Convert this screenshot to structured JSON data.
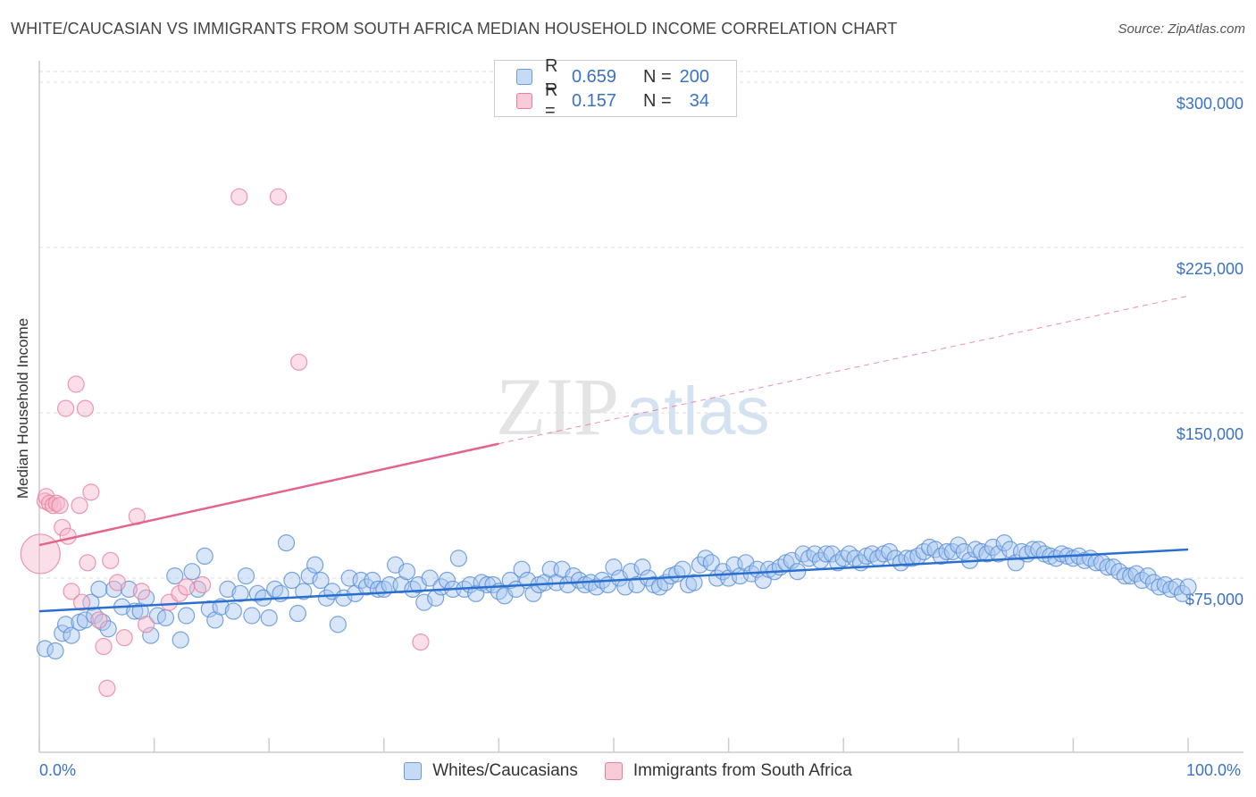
{
  "header": {
    "title": "WHITE/CAUCASIAN VS IMMIGRANTS FROM SOUTH AFRICA MEDIAN HOUSEHOLD INCOME CORRELATION CHART",
    "source": "Source: ZipAtlas.com"
  },
  "watermark": {
    "zip": "ZIP",
    "atlas": "atlas"
  },
  "legend": {
    "rows": [
      {
        "r_label": "R =",
        "r_value": "0.659",
        "n_label": "N =",
        "n_value": "200",
        "color": "#a8c8f0"
      },
      {
        "r_label": "R =",
        "r_value": "0.157",
        "n_label": "N =",
        "n_value": "34",
        "color": "#f5b8cc"
      }
    ]
  },
  "bottom_legend": {
    "white": "Whites/Caucasians",
    "immigrants": "Immigrants from South Africa"
  },
  "colors": {
    "blue_fill": "#a8c8f0",
    "blue_stroke": "#5a8fd6",
    "blue_line": "#2a6fcf",
    "pink_fill": "#f5b8cc",
    "pink_stroke": "#e7809e",
    "pink_line": "#e4638a",
    "axis_text": "#3a72c4"
  },
  "chart_data": {
    "type": "scatter",
    "xlabel": "",
    "ylabel": "Median Household Income",
    "x_tick_labels": [
      "0.0%",
      "100.0%"
    ],
    "y_tick_labels": [
      "$75,000",
      "$150,000",
      "$225,000",
      "$300,000"
    ],
    "y_ticks": [
      75000,
      150000,
      225000,
      300000
    ],
    "xlim": [
      0,
      100
    ],
    "ylim": [
      0,
      310000
    ],
    "grid": true,
    "legend_position": "top-center",
    "series": [
      {
        "name": "Whites/Caucasians",
        "r": 0.659,
        "n": 200,
        "trend": {
          "x": [
            0,
            100
          ],
          "y": [
            62000,
            90000
          ],
          "dashed": false
        },
        "points": [
          [
            0.5,
            45000
          ],
          [
            1.4,
            44000
          ],
          [
            2.0,
            52000
          ],
          [
            2.3,
            56000
          ],
          [
            2.8,
            51000
          ],
          [
            3.5,
            57000
          ],
          [
            4.0,
            58000
          ],
          [
            4.5,
            66000
          ],
          [
            4.8,
            60000
          ],
          [
            5.2,
            72000
          ],
          [
            5.5,
            57000
          ],
          [
            6.0,
            54000
          ],
          [
            6.5,
            72000
          ],
          [
            7.2,
            64000
          ],
          [
            7.8,
            72000
          ],
          [
            8.3,
            62000
          ],
          [
            8.8,
            62000
          ],
          [
            9.3,
            68000
          ],
          [
            9.7,
            51000
          ],
          [
            10.3,
            60000
          ],
          [
            11.0,
            59000
          ],
          [
            11.8,
            78000
          ],
          [
            12.3,
            49000
          ],
          [
            12.8,
            60000
          ],
          [
            13.3,
            80000
          ],
          [
            13.8,
            72000
          ],
          [
            14.4,
            87000
          ],
          [
            14.8,
            63000
          ],
          [
            15.3,
            58000
          ],
          [
            15.8,
            64000
          ],
          [
            16.4,
            72000
          ],
          [
            16.9,
            62000
          ],
          [
            17.5,
            70000
          ],
          [
            18.0,
            78000
          ],
          [
            18.5,
            60000
          ],
          [
            19.0,
            70000
          ],
          [
            19.5,
            68000
          ],
          [
            20.0,
            59000
          ],
          [
            20.5,
            72000
          ],
          [
            21.0,
            70000
          ],
          [
            21.5,
            93000
          ],
          [
            22.0,
            76000
          ],
          [
            22.5,
            61000
          ],
          [
            23.0,
            71000
          ],
          [
            23.5,
            78000
          ],
          [
            24.0,
            83000
          ],
          [
            24.5,
            76000
          ],
          [
            25.0,
            68000
          ],
          [
            25.5,
            71000
          ],
          [
            26.0,
            56000
          ],
          [
            26.5,
            68000
          ],
          [
            27.0,
            77000
          ],
          [
            27.5,
            70000
          ],
          [
            28.0,
            76000
          ],
          [
            28.5,
            73000
          ],
          [
            29.0,
            76000
          ],
          [
            29.5,
            72000
          ],
          [
            30.0,
            72000
          ],
          [
            30.5,
            74000
          ],
          [
            31.0,
            83000
          ],
          [
            31.5,
            74000
          ],
          [
            32.0,
            80000
          ],
          [
            32.5,
            72000
          ],
          [
            33.0,
            74000
          ],
          [
            33.5,
            66000
          ],
          [
            34.0,
            77000
          ],
          [
            34.5,
            68000
          ],
          [
            35.0,
            73000
          ],
          [
            35.5,
            76000
          ],
          [
            36.0,
            72000
          ],
          [
            36.5,
            86000
          ],
          [
            37.0,
            72000
          ],
          [
            37.5,
            74000
          ],
          [
            38.0,
            70000
          ],
          [
            38.5,
            75000
          ],
          [
            39.0,
            74000
          ],
          [
            39.5,
            74000
          ],
          [
            40.0,
            71000
          ],
          [
            40.5,
            69000
          ],
          [
            41.0,
            76000
          ],
          [
            41.5,
            72000
          ],
          [
            42.0,
            81000
          ],
          [
            42.5,
            76000
          ],
          [
            43.0,
            70000
          ],
          [
            43.5,
            74000
          ],
          [
            44.0,
            75000
          ],
          [
            44.5,
            81000
          ],
          [
            45.0,
            75000
          ],
          [
            45.5,
            81000
          ],
          [
            46.0,
            74000
          ],
          [
            46.5,
            78000
          ],
          [
            47.0,
            76000
          ],
          [
            47.5,
            74000
          ],
          [
            48.0,
            75000
          ],
          [
            48.5,
            73000
          ],
          [
            49.0,
            76000
          ],
          [
            49.5,
            74000
          ],
          [
            50.0,
            82000
          ],
          [
            50.5,
            77000
          ],
          [
            51.0,
            73000
          ],
          [
            51.5,
            80000
          ],
          [
            52.0,
            74000
          ],
          [
            52.5,
            82000
          ],
          [
            53.0,
            77000
          ],
          [
            53.5,
            74000
          ],
          [
            54.0,
            73000
          ],
          [
            54.5,
            75000
          ],
          [
            55.0,
            78000
          ],
          [
            55.5,
            79000
          ],
          [
            56.0,
            81000
          ],
          [
            56.5,
            74000
          ],
          [
            57.0,
            75000
          ],
          [
            57.5,
            83000
          ],
          [
            58.0,
            86000
          ],
          [
            58.5,
            84000
          ],
          [
            59.0,
            77000
          ],
          [
            59.5,
            80000
          ],
          [
            60.0,
            77000
          ],
          [
            60.5,
            83000
          ],
          [
            61.0,
            78000
          ],
          [
            61.5,
            84000
          ],
          [
            62.0,
            79000
          ],
          [
            62.5,
            81000
          ],
          [
            63.0,
            76000
          ],
          [
            63.5,
            81000
          ],
          [
            64.0,
            80000
          ],
          [
            64.5,
            82000
          ],
          [
            65.0,
            84000
          ],
          [
            65.5,
            85000
          ],
          [
            66.0,
            80000
          ],
          [
            66.5,
            88000
          ],
          [
            67.0,
            86000
          ],
          [
            67.5,
            88000
          ],
          [
            68.0,
            85000
          ],
          [
            68.5,
            88000
          ],
          [
            69.0,
            88000
          ],
          [
            69.5,
            84000
          ],
          [
            70.0,
            86000
          ],
          [
            70.5,
            88000
          ],
          [
            71.0,
            86000
          ],
          [
            71.5,
            84000
          ],
          [
            72.0,
            87000
          ],
          [
            72.5,
            88000
          ],
          [
            73.0,
            86000
          ],
          [
            73.5,
            88000
          ],
          [
            74.0,
            89000
          ],
          [
            74.5,
            86000
          ],
          [
            75.0,
            84000
          ],
          [
            75.5,
            86000
          ],
          [
            76.0,
            86000
          ],
          [
            76.5,
            87000
          ],
          [
            77.0,
            89000
          ],
          [
            77.5,
            91000
          ],
          [
            78.0,
            90000
          ],
          [
            78.5,
            87000
          ],
          [
            79.0,
            89000
          ],
          [
            79.5,
            89000
          ],
          [
            80.0,
            92000
          ],
          [
            80.5,
            89000
          ],
          [
            81.0,
            85000
          ],
          [
            81.5,
            90000
          ],
          [
            82.0,
            89000
          ],
          [
            82.5,
            88000
          ],
          [
            83.0,
            91000
          ],
          [
            83.5,
            88000
          ],
          [
            84.0,
            93000
          ],
          [
            84.5,
            90000
          ],
          [
            85.0,
            84000
          ],
          [
            85.5,
            89000
          ],
          [
            86.0,
            88000
          ],
          [
            86.5,
            90000
          ],
          [
            87.0,
            90000
          ],
          [
            87.5,
            88000
          ],
          [
            88.0,
            87000
          ],
          [
            88.5,
            86000
          ],
          [
            89.0,
            88000
          ],
          [
            89.5,
            87000
          ],
          [
            90.0,
            86000
          ],
          [
            90.5,
            87000
          ],
          [
            91.0,
            85000
          ],
          [
            91.5,
            86000
          ],
          [
            92.0,
            84000
          ],
          [
            92.5,
            84000
          ],
          [
            93.0,
            82000
          ],
          [
            93.5,
            82000
          ],
          [
            94.0,
            80000
          ],
          [
            94.5,
            78000
          ],
          [
            95.0,
            78000
          ],
          [
            95.5,
            79000
          ],
          [
            96.0,
            76000
          ],
          [
            96.5,
            78000
          ],
          [
            97.0,
            75000
          ],
          [
            97.5,
            73000
          ],
          [
            98.0,
            74000
          ],
          [
            98.5,
            72000
          ],
          [
            99.0,
            73000
          ],
          [
            99.5,
            70000
          ],
          [
            100.0,
            73000
          ]
        ]
      },
      {
        "name": "Immigrants from South Africa",
        "r": 0.157,
        "n": 34,
        "trend": {
          "x": [
            0,
            40,
            100
          ],
          "y": [
            92000,
            138000,
            205000
          ],
          "dashed_from": 40
        },
        "points": [
          [
            0.1,
            88000
          ],
          [
            0.5,
            112000
          ],
          [
            0.6,
            114000
          ],
          [
            0.9,
            111000
          ],
          [
            1.2,
            110000
          ],
          [
            1.5,
            111000
          ],
          [
            1.8,
            110000
          ],
          [
            2.0,
            100000
          ],
          [
            2.3,
            154000
          ],
          [
            2.5,
            96000
          ],
          [
            2.8,
            71000
          ],
          [
            3.2,
            165000
          ],
          [
            3.5,
            110000
          ],
          [
            3.7,
            66000
          ],
          [
            4.0,
            154000
          ],
          [
            4.2,
            84000
          ],
          [
            4.5,
            116000
          ],
          [
            5.2,
            58000
          ],
          [
            5.6,
            46000
          ],
          [
            5.9,
            27000
          ],
          [
            6.2,
            85000
          ],
          [
            6.8,
            75000
          ],
          [
            7.4,
            50000
          ],
          [
            8.5,
            105000
          ],
          [
            8.9,
            71000
          ],
          [
            9.3,
            56000
          ],
          [
            11.3,
            66000
          ],
          [
            12.2,
            70000
          ],
          [
            12.8,
            73000
          ],
          [
            14.2,
            74000
          ],
          [
            17.4,
            250000
          ],
          [
            20.8,
            250000
          ],
          [
            22.6,
            175000
          ],
          [
            33.2,
            48000
          ]
        ]
      }
    ]
  }
}
